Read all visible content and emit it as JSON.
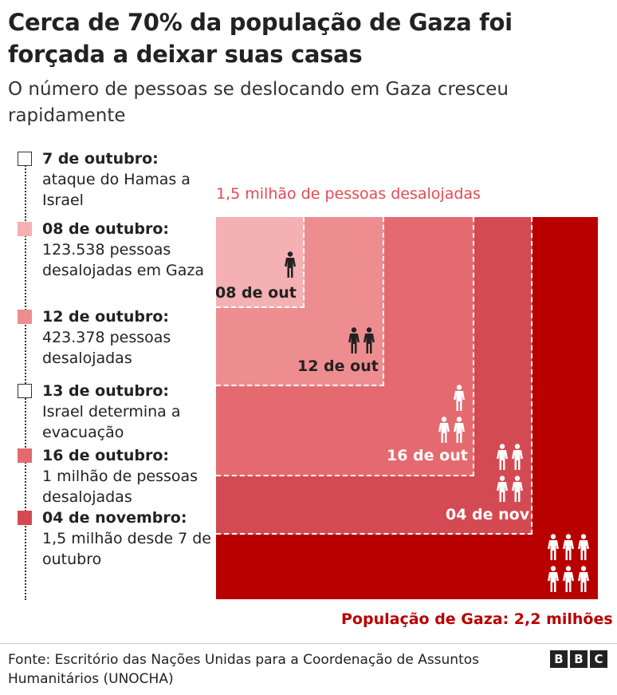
{
  "title": "Cerca de 70% da população de Gaza foi forçada a deixar suas casas",
  "subtitle": "O número de pessoas se deslocando em Gaza cresceu rapidamente",
  "legend": [
    {
      "date": "7 de outubro:",
      "text": "ataque do Hamas a Israel",
      "color": "#ffffff"
    },
    {
      "date": "08 de outubro:",
      "text": "123.538 pessoas desalojadas em Gaza",
      "color": "#f4b0b3"
    },
    {
      "date": "12 de outubro:",
      "text": "423.378 pessoas desalojadas",
      "color": "#ee8d90"
    },
    {
      "date": "13 de outubro:",
      "text": "Israel determina a evacuação",
      "color": "#ffffff"
    },
    {
      "date": "16 de outubro:",
      "text": "1 milhão de pessoas desalojadas",
      "color": "#e56a70"
    },
    {
      "date": "04 de novembro:",
      "text": "1,5 milhão desde 7 de outubro",
      "color": "#d44a52"
    }
  ],
  "diagram": {
    "top_label": "1,5 milhão de pessoas desalojadas",
    "bottom_label": "População de Gaza: 2,2 milhões",
    "population_color": "#b80000",
    "squares": [
      {
        "label": "08 de out",
        "people_icons": 1,
        "color": "#f4b0b3"
      },
      {
        "label": "12 de out",
        "people_icons": 2,
        "color": "#ee8d90"
      },
      {
        "label": "16 de out",
        "people_icons": 3,
        "color": "#e56a70"
      },
      {
        "label": "04 de nov",
        "people_icons": 4,
        "color": "#d44a52"
      }
    ],
    "population_icons": 6
  },
  "footer": {
    "source": "Fonte: Escritório das Nações Unidas para a Coordenação de Assuntos Humanitários (UNOCHA)",
    "logo": "BBC"
  }
}
